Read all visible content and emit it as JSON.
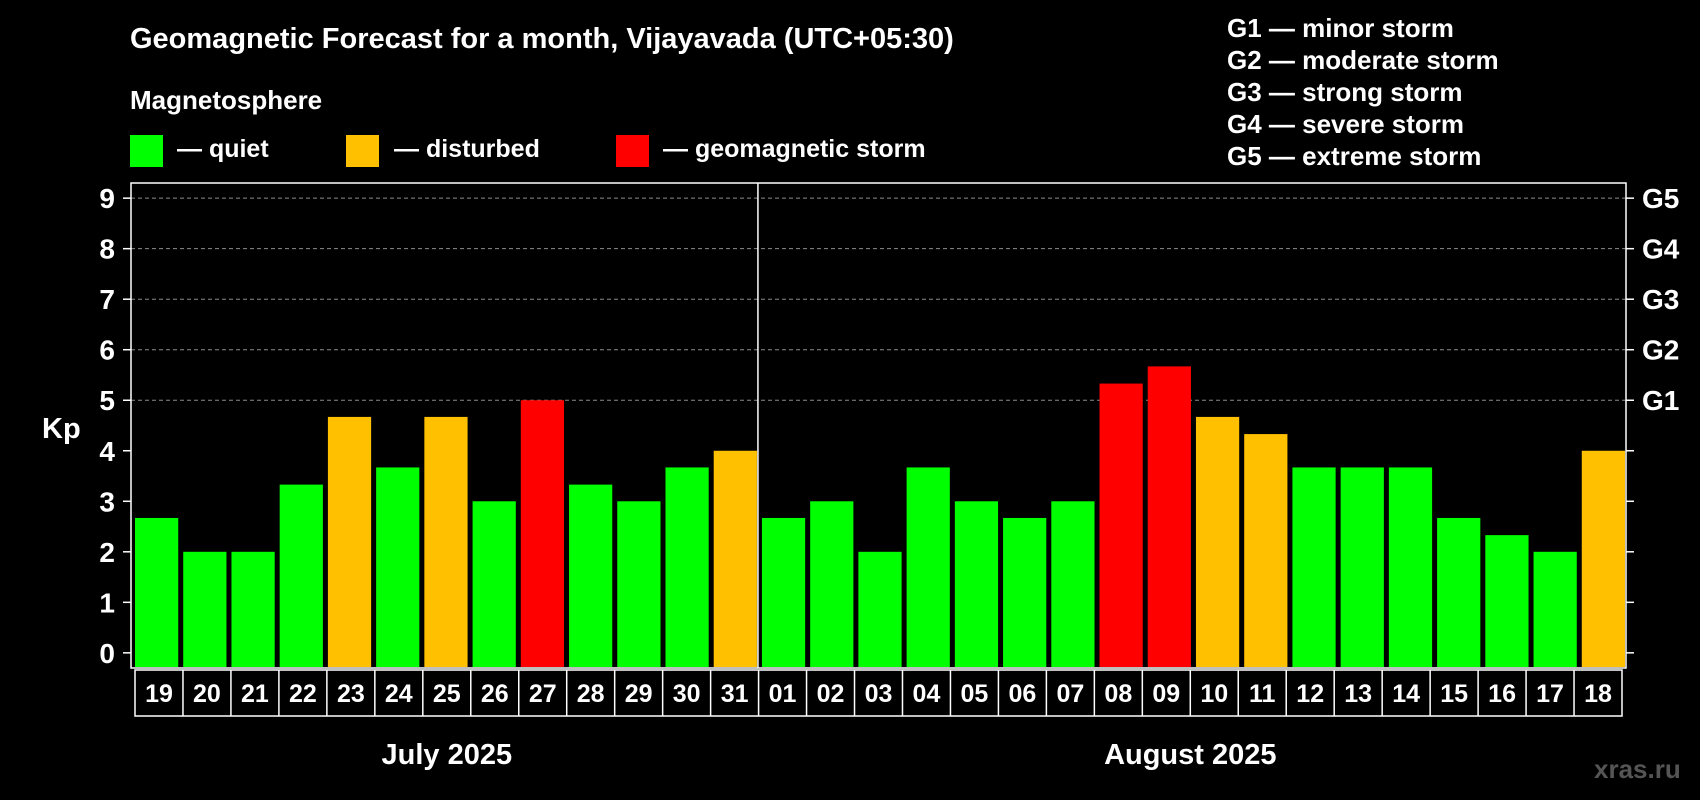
{
  "title": "Geomagnetic Forecast for a month, Vijayavada (UTC+05:30)",
  "legend": {
    "heading": "Magnetosphere",
    "items": [
      {
        "label": "— quiet",
        "color": "#00ff00"
      },
      {
        "label": "— disturbed",
        "color": "#ffc000"
      },
      {
        "label": "— geomagnetic storm",
        "color": "#ff0000"
      }
    ]
  },
  "storm_levels": [
    "G1 — minor storm",
    "G2 — moderate storm",
    "G3 — strong storm",
    "G4 — severe storm",
    "G5 — extreme storm"
  ],
  "watermark": "xras.ru",
  "chart_data": {
    "type": "bar",
    "title": "Geomagnetic Forecast for a month, Vijayavada (UTC+05:30)",
    "ylabel": "Kp",
    "ylim": [
      -0.3,
      9.3
    ],
    "yticks": [
      0,
      1,
      2,
      3,
      4,
      5,
      6,
      7,
      8,
      9
    ],
    "right_axis": [
      {
        "kp": 5,
        "label": "G1"
      },
      {
        "kp": 6,
        "label": "G2"
      },
      {
        "kp": 7,
        "label": "G3"
      },
      {
        "kp": 8,
        "label": "G4"
      },
      {
        "kp": 9,
        "label": "G5"
      }
    ],
    "grid": "horizontal dashed from Kp 5 to 9",
    "months": [
      {
        "label": "July 2025",
        "days": 13
      },
      {
        "label": "August 2025",
        "days": 18
      }
    ],
    "categories": [
      "19",
      "20",
      "21",
      "22",
      "23",
      "24",
      "25",
      "26",
      "27",
      "28",
      "29",
      "30",
      "31",
      "01",
      "02",
      "03",
      "04",
      "05",
      "06",
      "07",
      "08",
      "09",
      "10",
      "11",
      "12",
      "13",
      "14",
      "15",
      "16",
      "17",
      "18"
    ],
    "values": [
      2.67,
      2.0,
      2.0,
      3.33,
      4.67,
      3.67,
      4.67,
      3.0,
      5.0,
      3.33,
      3.0,
      3.67,
      4.0,
      2.67,
      3.0,
      2.0,
      3.67,
      3.0,
      2.67,
      3.0,
      5.33,
      5.67,
      4.67,
      4.33,
      3.67,
      3.67,
      3.67,
      2.67,
      2.33,
      2.0,
      4.0
    ],
    "status": [
      "quiet",
      "quiet",
      "quiet",
      "quiet",
      "disturbed",
      "quiet",
      "disturbed",
      "quiet",
      "storm",
      "quiet",
      "quiet",
      "quiet",
      "disturbed",
      "quiet",
      "quiet",
      "quiet",
      "quiet",
      "quiet",
      "quiet",
      "quiet",
      "storm",
      "storm",
      "disturbed",
      "disturbed",
      "quiet",
      "quiet",
      "quiet",
      "quiet",
      "quiet",
      "quiet",
      "disturbed"
    ],
    "status_colors": {
      "quiet": "#00ff00",
      "disturbed": "#ffc000",
      "storm": "#ff0000"
    }
  }
}
